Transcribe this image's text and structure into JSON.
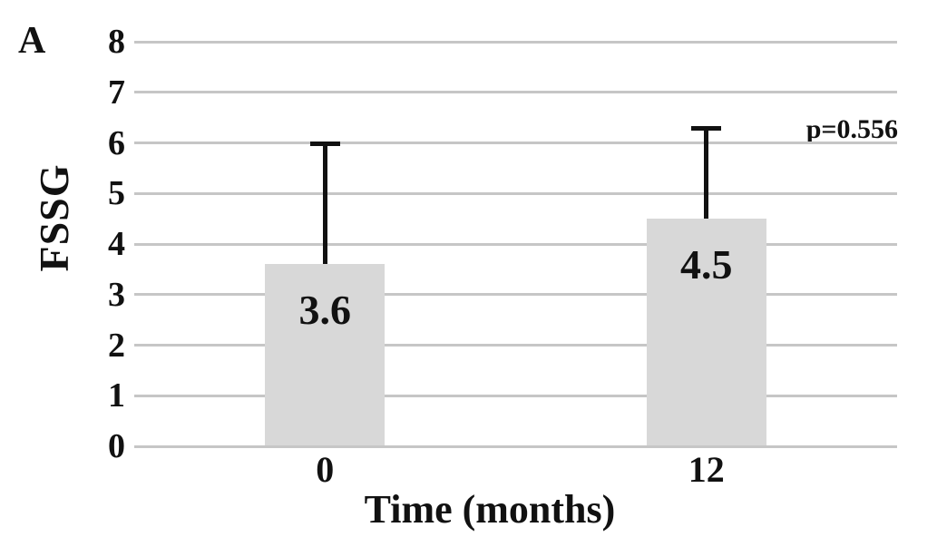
{
  "figure": {
    "panel_label": "A"
  },
  "chart_data": {
    "type": "bar",
    "title": "",
    "categories": [
      "0",
      "12"
    ],
    "values": [
      3.6,
      4.5
    ],
    "value_labels": [
      "3.6",
      "4.5"
    ],
    "error_upper": [
      2.4,
      1.8
    ],
    "xlabel": "Time (months)",
    "ylabel": "FSSG",
    "ylim": [
      0,
      8
    ],
    "yticks": [
      0,
      1,
      2,
      3,
      4,
      5,
      6,
      7,
      8
    ],
    "annotation": "p=0.556",
    "grid": true,
    "legend": false,
    "bar_color": "#d8d8d8",
    "gridline_color": "#c6c6c6",
    "error_bar_color": "#111111",
    "text_color": "#111111"
  }
}
